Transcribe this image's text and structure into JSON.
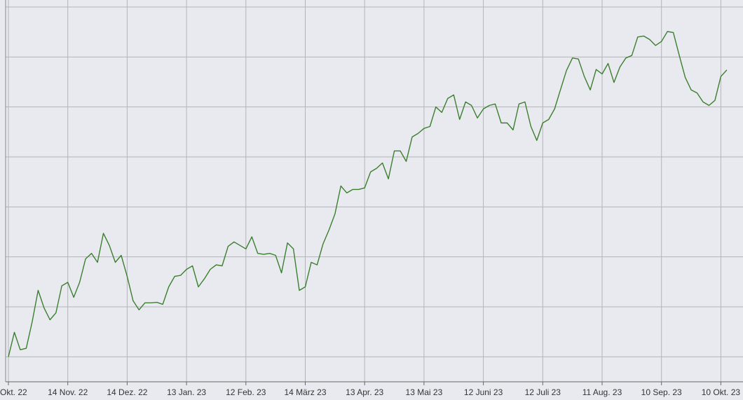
{
  "chart_data": {
    "type": "line",
    "categories": [
      "Okt. 22",
      null,
      null,
      null,
      null,
      null,
      null,
      null,
      null,
      null,
      "14 Nov. 22",
      null,
      null,
      null,
      null,
      null,
      null,
      null,
      null,
      null,
      "14 Dez. 22",
      null,
      null,
      null,
      null,
      null,
      null,
      null,
      null,
      null,
      "13 Jan. 23",
      null,
      null,
      null,
      null,
      null,
      null,
      null,
      null,
      null,
      "12 Feb. 23",
      null,
      null,
      null,
      null,
      null,
      null,
      null,
      null,
      null,
      "14 März 23",
      null,
      null,
      null,
      null,
      null,
      null,
      null,
      null,
      null,
      "13 Apr. 23",
      null,
      null,
      null,
      null,
      null,
      null,
      null,
      null,
      null,
      "13 Mai 23",
      null,
      null,
      null,
      null,
      null,
      null,
      null,
      null,
      null,
      "12 Juni 23",
      null,
      null,
      null,
      null,
      null,
      null,
      null,
      null,
      null,
      "12 Juli 23",
      null,
      null,
      null,
      null,
      null,
      null,
      null,
      null,
      null,
      "11 Aug. 23",
      null,
      null,
      null,
      null,
      null,
      null,
      null,
      null,
      null,
      "10 Sep. 23",
      null,
      null,
      null,
      null,
      null,
      null,
      null,
      null,
      null,
      "10 Okt. 23",
      null
    ],
    "values": [
      1.0,
      1.49,
      1.14,
      1.17,
      1.7,
      2.33,
      1.98,
      1.74,
      1.88,
      2.42,
      2.49,
      2.19,
      2.49,
      2.96,
      3.07,
      2.89,
      3.47,
      3.23,
      2.89,
      3.03,
      2.61,
      2.12,
      1.94,
      2.08,
      2.08,
      2.09,
      2.05,
      2.4,
      2.61,
      2.63,
      2.75,
      2.82,
      2.4,
      2.56,
      2.75,
      2.84,
      2.82,
      3.21,
      3.3,
      3.23,
      3.16,
      3.4,
      3.07,
      3.05,
      3.07,
      3.03,
      2.68,
      3.28,
      3.16,
      2.33,
      2.4,
      2.89,
      2.84,
      3.26,
      3.54,
      3.86,
      4.42,
      4.28,
      4.35,
      4.35,
      4.38,
      4.7,
      4.77,
      4.88,
      4.56,
      5.12,
      5.12,
      4.91,
      5.4,
      5.47,
      5.57,
      5.61,
      6.0,
      5.89,
      6.17,
      6.24,
      5.75,
      6.1,
      6.03,
      5.78,
      5.96,
      6.03,
      6.06,
      5.68,
      5.68,
      5.54,
      6.06,
      6.1,
      5.61,
      5.33,
      5.68,
      5.75,
      5.96,
      6.35,
      6.73,
      6.98,
      6.96,
      6.61,
      6.34,
      6.75,
      6.66,
      6.87,
      6.49,
      6.8,
      6.98,
      7.03,
      7.4,
      7.42,
      7.35,
      7.23,
      7.31,
      7.51,
      7.49,
      7.03,
      6.59,
      6.34,
      6.28,
      6.1,
      6.03,
      6.13,
      6.61,
      6.74
    ],
    "color": "#3b7f2e",
    "ylim": [
      0.5,
      8
    ],
    "yticks": [
      1,
      2,
      3,
      4,
      5,
      6,
      7,
      8
    ],
    "grid": true
  }
}
